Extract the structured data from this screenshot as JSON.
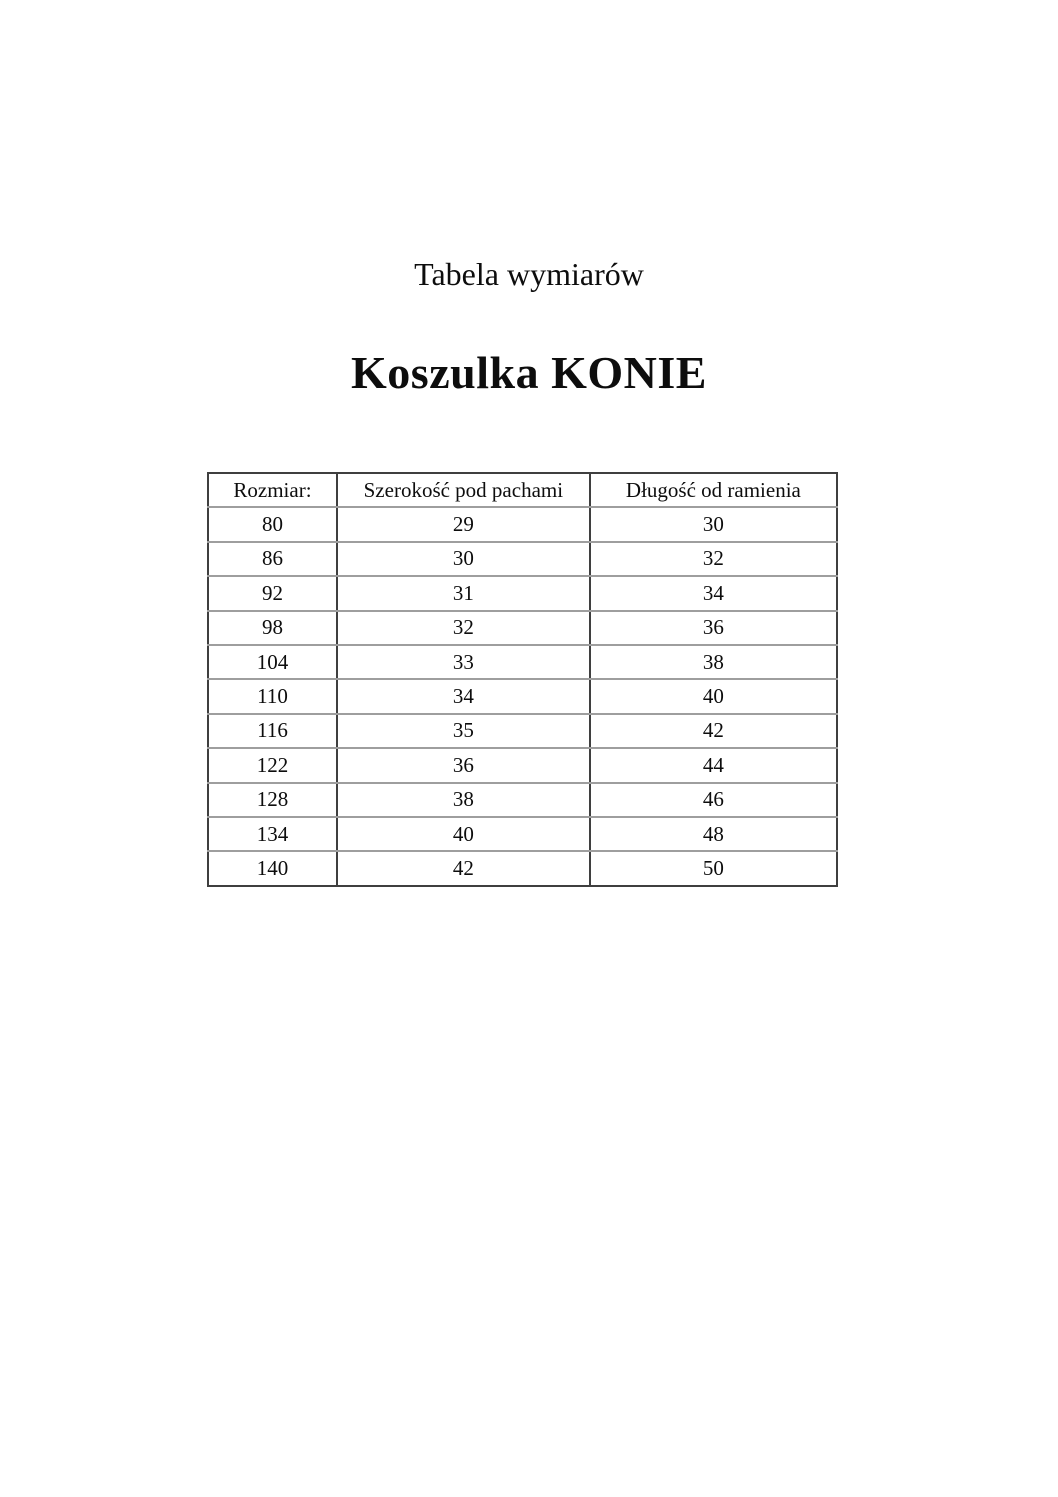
{
  "page": {
    "subtitle": "Tabela wymiarów",
    "title": "Koszulka KONIE"
  },
  "table": {
    "headers": [
      "Rozmiar:",
      "Szerokość pod pachami",
      "Długość od ramienia"
    ],
    "rows": [
      [
        "80",
        "29",
        "30"
      ],
      [
        "86",
        "30",
        "32"
      ],
      [
        "92",
        "31",
        "34"
      ],
      [
        "98",
        "32",
        "36"
      ],
      [
        "104",
        "33",
        "38"
      ],
      [
        "110",
        "34",
        "40"
      ],
      [
        "116",
        "35",
        "42"
      ],
      [
        "122",
        "36",
        "44"
      ],
      [
        "128",
        "38",
        "46"
      ],
      [
        "134",
        "40",
        "48"
      ],
      [
        "140",
        "42",
        "50"
      ]
    ]
  },
  "colors": {
    "background": "#ffffff",
    "text": "#0d0d0d",
    "border_outer": "#3f3f3f",
    "border_inner_horizontal": "#9e9e9e"
  }
}
